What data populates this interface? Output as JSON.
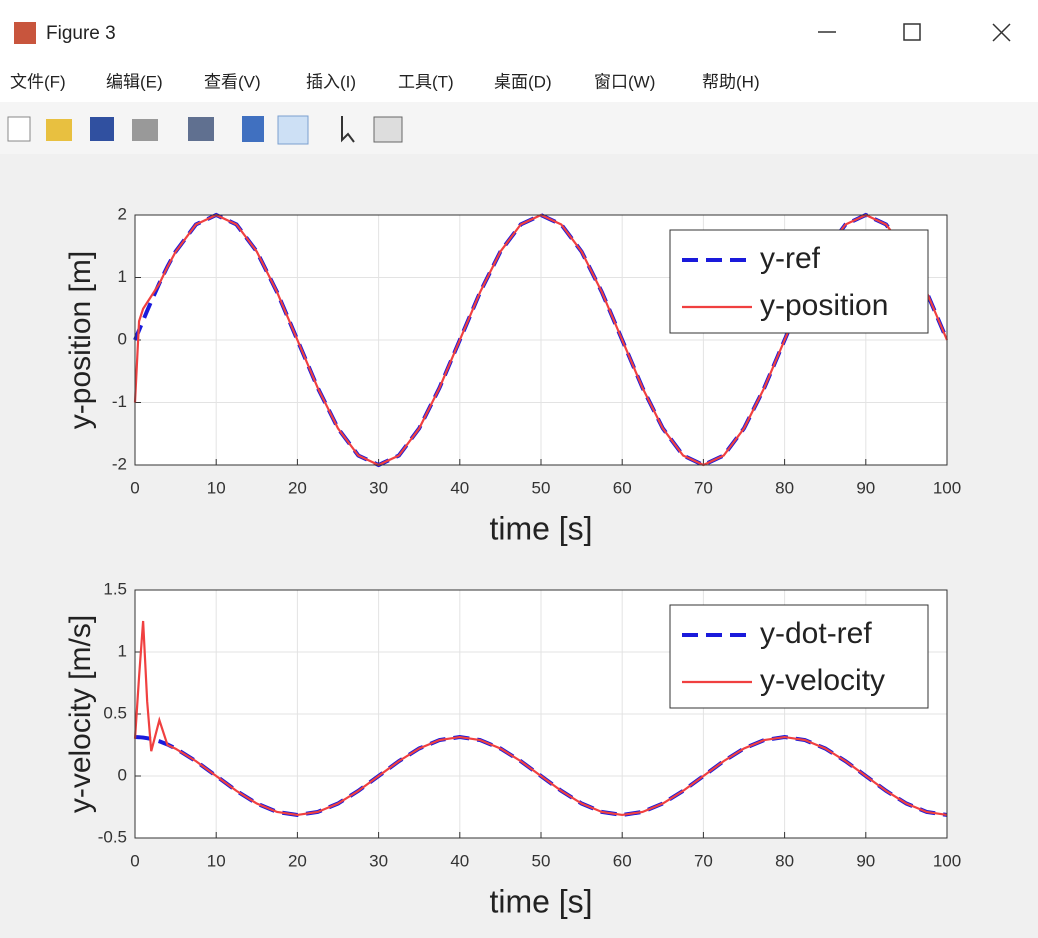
{
  "window": {
    "title": "Figure 3",
    "menu": [
      "文件(F)",
      "编辑(E)",
      "查看(V)",
      "插入(I)",
      "工具(T)",
      "桌面(D)",
      "窗口(W)",
      "帮助(H)"
    ]
  },
  "chart_data": [
    {
      "type": "line",
      "xlabel": "time [s]",
      "ylabel": "y-position [m]",
      "x": [
        0,
        0.5,
        1,
        1.5,
        2,
        3,
        4,
        5,
        7.5,
        10,
        12.5,
        15,
        17.5,
        20,
        22.5,
        25,
        27.5,
        30,
        32.5,
        35,
        37.5,
        40,
        42.5,
        45,
        47.5,
        50,
        52.5,
        55,
        57.5,
        60,
        62.5,
        65,
        67.5,
        70,
        72.5,
        75,
        77.5,
        80,
        82.5,
        85,
        87.5,
        90,
        92.5,
        95,
        97.5,
        100
      ],
      "series": [
        {
          "name": "y-ref",
          "color": "#1a1adb",
          "linestyle": "--",
          "values": [
            0,
            0.157,
            0.313,
            0.468,
            0.618,
            0.908,
            1.176,
            1.414,
            1.848,
            2,
            1.848,
            1.414,
            0.765,
            0,
            -0.765,
            -1.414,
            -1.848,
            -2,
            -1.848,
            -1.414,
            -0.765,
            0,
            0.765,
            1.414,
            1.848,
            2,
            1.848,
            1.414,
            0.765,
            0,
            -0.765,
            -1.414,
            -1.848,
            -2,
            -1.848,
            -1.414,
            -0.765,
            0,
            0.765,
            1.414,
            1.848,
            2,
            1.848,
            1.414,
            0.765,
            0
          ]
        },
        {
          "name": "y-position",
          "color": "#f04040",
          "linestyle": "-",
          "values": [
            -1,
            0.3,
            0.5,
            0.6,
            0.7,
            0.9,
            1.17,
            1.41,
            1.848,
            2,
            1.848,
            1.414,
            0.765,
            0,
            -0.765,
            -1.414,
            -1.848,
            -2,
            -1.848,
            -1.414,
            -0.765,
            0,
            0.765,
            1.414,
            1.848,
            2,
            1.848,
            1.414,
            0.765,
            0,
            -0.765,
            -1.414,
            -1.848,
            -2,
            -1.848,
            -1.414,
            -0.765,
            0,
            0.765,
            1.414,
            1.848,
            2,
            1.848,
            1.414,
            0.765,
            0
          ]
        }
      ],
      "xlim": [
        0,
        100
      ],
      "xticks": [
        0,
        10,
        20,
        30,
        40,
        50,
        60,
        70,
        80,
        90,
        100
      ],
      "ylim": [
        -2,
        2
      ],
      "yticks": [
        -2,
        -1,
        0,
        1,
        2
      ],
      "grid": true,
      "legend": "northeast"
    },
    {
      "type": "line",
      "xlabel": "time [s]",
      "ylabel": "y-velocity [m/s]",
      "x": [
        0,
        0.5,
        1,
        1.5,
        2,
        3,
        4,
        5,
        7.5,
        10,
        12.5,
        15,
        17.5,
        20,
        22.5,
        25,
        27.5,
        30,
        32.5,
        35,
        37.5,
        40,
        42.5,
        45,
        47.5,
        50,
        52.5,
        55,
        57.5,
        60,
        62.5,
        65,
        67.5,
        70,
        72.5,
        75,
        77.5,
        80,
        82.5,
        85,
        87.5,
        90,
        92.5,
        95,
        97.5,
        100
      ],
      "series": [
        {
          "name": "y-dot-ref",
          "color": "#1a1adb",
          "linestyle": "--",
          "values": [
            0.314,
            0.313,
            0.31,
            0.305,
            0.299,
            0.28,
            0.254,
            0.222,
            0.12,
            0,
            -0.12,
            -0.222,
            -0.29,
            -0.314,
            -0.29,
            -0.222,
            -0.12,
            0,
            0.12,
            0.222,
            0.29,
            0.314,
            0.29,
            0.222,
            0.12,
            0,
            -0.12,
            -0.222,
            -0.29,
            -0.314,
            -0.29,
            -0.222,
            -0.12,
            0,
            0.12,
            0.222,
            0.29,
            0.314,
            0.29,
            0.222,
            0.12,
            0,
            -0.12,
            -0.222,
            -0.29,
            -0.314
          ]
        },
        {
          "name": "y-velocity",
          "color": "#f04040",
          "linestyle": "-",
          "values": [
            0.3,
            0.8,
            1.25,
            0.6,
            0.2,
            0.45,
            0.25,
            0.22,
            0.12,
            0,
            -0.12,
            -0.222,
            -0.29,
            -0.314,
            -0.29,
            -0.222,
            -0.12,
            0,
            0.12,
            0.222,
            0.29,
            0.314,
            0.29,
            0.222,
            0.12,
            0,
            -0.12,
            -0.222,
            -0.29,
            -0.314,
            -0.29,
            -0.222,
            -0.12,
            0,
            0.12,
            0.222,
            0.29,
            0.314,
            0.29,
            0.222,
            0.12,
            0,
            -0.12,
            -0.222,
            -0.29,
            -0.314
          ]
        }
      ],
      "xlim": [
        0,
        100
      ],
      "xticks": [
        0,
        10,
        20,
        30,
        40,
        50,
        60,
        70,
        80,
        90,
        100
      ],
      "ylim": [
        -0.5,
        1.5
      ],
      "yticks": [
        -0.5,
        0,
        0.5,
        1,
        1.5
      ],
      "grid": true,
      "legend": "northeast"
    }
  ]
}
